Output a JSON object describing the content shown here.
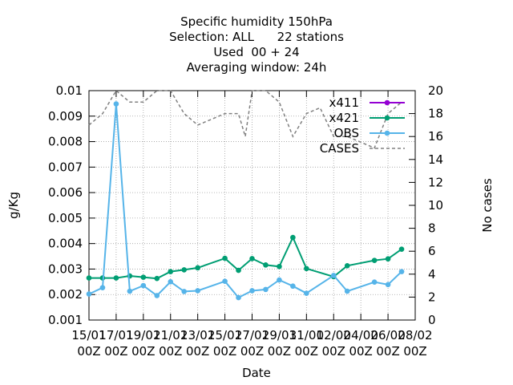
{
  "chart_data": {
    "type": "line",
    "title_lines": [
      "Specific humidity 150hPa",
      "Selection: ALL      22 stations",
      "Used  00 + 24",
      "Averaging window: 24h"
    ],
    "xlabel": "Date",
    "ylabel": "g/Kg",
    "y2label": "No cases",
    "x_tick_labels": [
      [
        "15/01",
        "00Z"
      ],
      [
        "17/01",
        "00Z"
      ],
      [
        "19/01",
        "00Z"
      ],
      [
        "21/01",
        "00Z"
      ],
      [
        "23/01",
        "00Z"
      ],
      [
        "25/01",
        "00Z"
      ],
      [
        "27/01",
        "00Z"
      ],
      [
        "29/01",
        "00Z"
      ],
      [
        "31/01",
        "00Z"
      ],
      [
        "02/02",
        "00Z"
      ],
      [
        "04/02",
        "00Z"
      ],
      [
        "06/02",
        "00Z"
      ],
      [
        "08/02",
        "00Z"
      ]
    ],
    "xlim_days": [
      0,
      24
    ],
    "ylim": [
      0.001,
      0.01
    ],
    "y_ticks": [
      "0.001",
      "0.002",
      "0.003",
      "0.004",
      "0.005",
      "0.006",
      "0.007",
      "0.008",
      "0.009",
      "0.01"
    ],
    "y2lim": [
      0,
      20
    ],
    "y2_ticks": [
      "0",
      "2",
      "4",
      "6",
      "8",
      "10",
      "12",
      "14",
      "16",
      "18",
      "20"
    ],
    "grid": true,
    "legend_position": "top-right",
    "series": [
      {
        "name": "x411",
        "color": "#9400d3",
        "axis": "y",
        "style": "line-points",
        "x_days": [],
        "values": []
      },
      {
        "name": "x421",
        "color": "#009e73",
        "axis": "y",
        "style": "line-points",
        "x_days": [
          0,
          1,
          2,
          3,
          4,
          5,
          6,
          7,
          8,
          10,
          11,
          12,
          13,
          14,
          15,
          16,
          18,
          19,
          21,
          22,
          23
        ],
        "values": [
          0.00265,
          0.00265,
          0.00265,
          0.00273,
          0.00268,
          0.00263,
          0.0029,
          0.00297,
          0.00305,
          0.00342,
          0.00295,
          0.00341,
          0.00316,
          0.0031,
          0.00424,
          0.00302,
          0.0027,
          0.00313,
          0.00334,
          0.0034,
          0.00378
        ]
      },
      {
        "name": "OBS",
        "color": "#56b4e9",
        "axis": "y",
        "style": "line-points",
        "x_days": [
          0,
          1,
          2,
          3,
          4,
          5,
          6,
          7,
          8,
          10,
          11,
          12,
          13,
          14,
          15,
          16,
          18,
          19,
          21,
          22,
          23
        ],
        "values": [
          0.00202,
          0.00227,
          0.00948,
          0.00213,
          0.00235,
          0.00196,
          0.0025,
          0.00212,
          0.00215,
          0.00252,
          0.00188,
          0.00215,
          0.0022,
          0.00257,
          0.00233,
          0.00205,
          0.00275,
          0.00213,
          0.00249,
          0.00239,
          0.0029
        ]
      },
      {
        "name": "CASES",
        "color": "#808080",
        "axis": "y2",
        "style": "dashed",
        "x_days": [
          0,
          1,
          2,
          3,
          4,
          5,
          5.5,
          6,
          7,
          8,
          9,
          10,
          11,
          11.5,
          12,
          13,
          14,
          15,
          16,
          17,
          18,
          19,
          20,
          21,
          22,
          23
        ],
        "values": [
          17,
          18,
          20,
          19,
          19,
          20,
          20,
          20,
          18,
          17,
          17.5,
          18,
          18,
          16,
          20,
          20,
          19,
          16,
          18,
          18.5,
          16,
          16,
          15.5,
          15,
          18,
          19
        ]
      }
    ]
  }
}
